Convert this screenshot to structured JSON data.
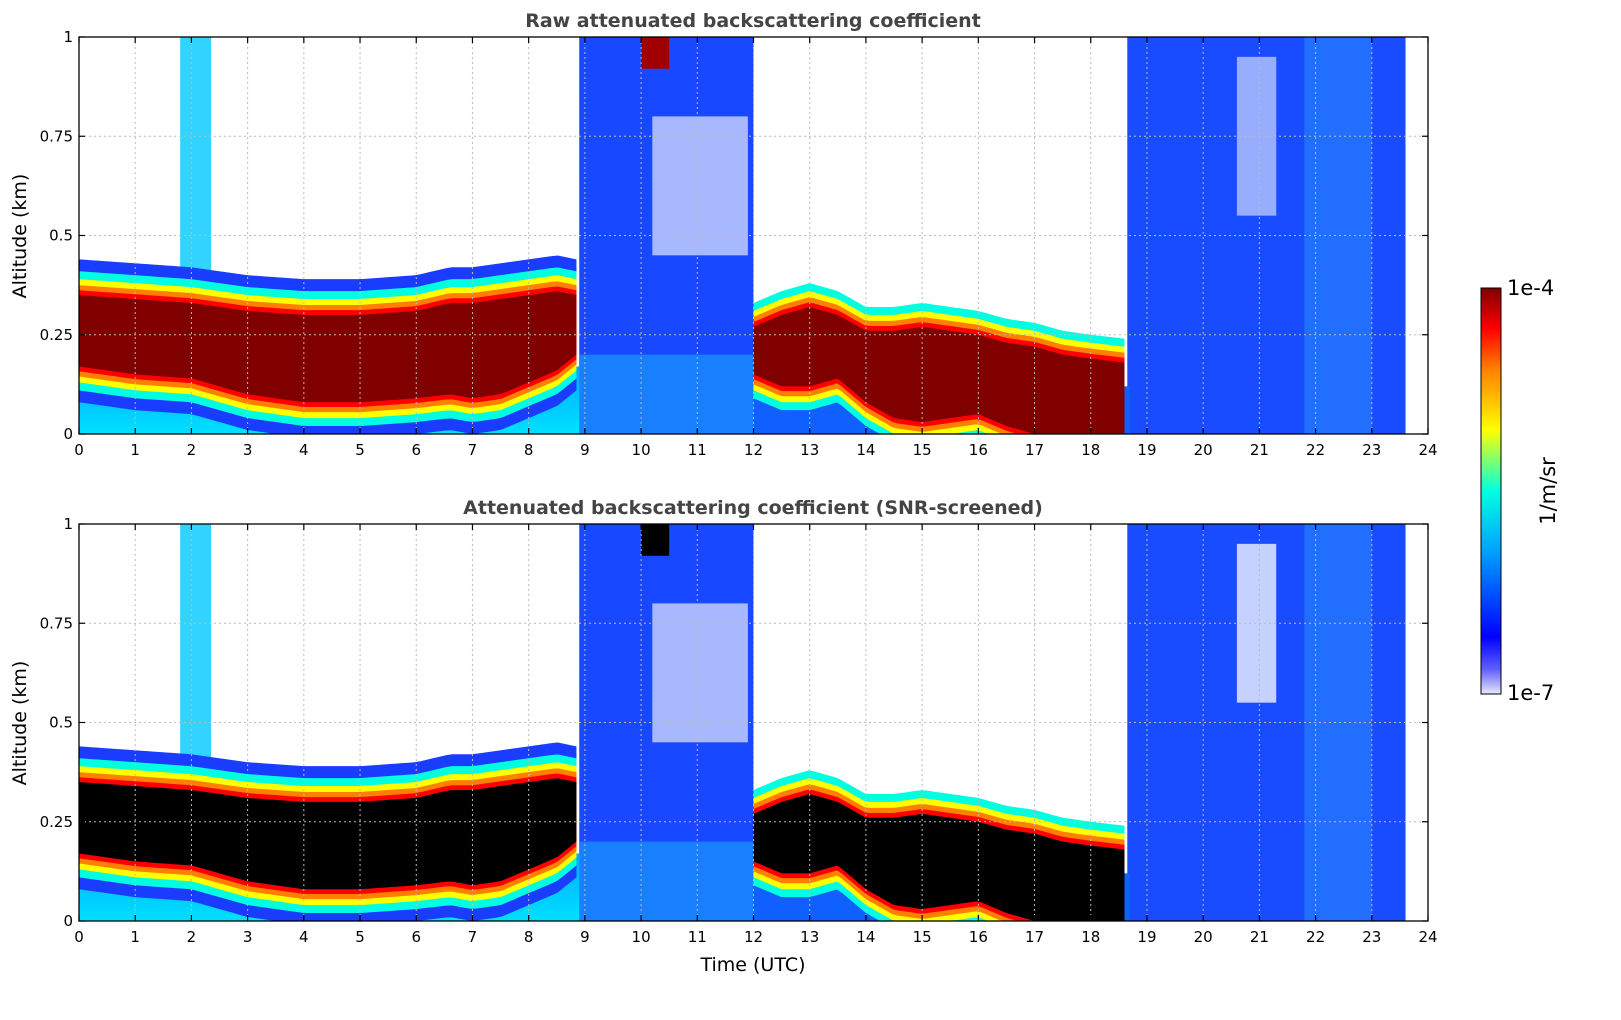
{
  "chart_data": [
    {
      "type": "heatmap",
      "id": "raw",
      "title": "Raw attenuated backscattering coefficient",
      "xlabel": "",
      "ylabel": "Altitude (km)",
      "xlim": [
        0,
        24
      ],
      "ylim": [
        0,
        1
      ],
      "x_ticks": [
        "0",
        "1",
        "2",
        "3",
        "4",
        "5",
        "6",
        "7",
        "8",
        "9",
        "10",
        "11",
        "12",
        "13",
        "14",
        "15",
        "16",
        "17",
        "18",
        "19",
        "20",
        "21",
        "22",
        "23",
        "24"
      ],
      "y_ticks": [
        "0",
        "0.25",
        "0.5",
        "0.75",
        "1"
      ],
      "grid": true,
      "data_end_time": 23.6,
      "layer": {
        "time": [
          0,
          1,
          2,
          3,
          4,
          5,
          6,
          6.6,
          7,
          7.5,
          8,
          8.5,
          8.85
        ],
        "base_km": [
          0.17,
          0.15,
          0.14,
          0.1,
          0.08,
          0.08,
          0.09,
          0.1,
          0.09,
          0.1,
          0.13,
          0.16,
          0.2
        ],
        "top_km": [
          0.35,
          0.34,
          0.33,
          0.31,
          0.3,
          0.3,
          0.31,
          0.33,
          0.33,
          0.34,
          0.35,
          0.36,
          0.35
        ]
      },
      "layer2": {
        "time": [
          12,
          12.5,
          13,
          13.5,
          14,
          14.5,
          15,
          15.5,
          16,
          16.5,
          17,
          17.5,
          18,
          18.6
        ],
        "base_km": [
          0.15,
          0.12,
          0.12,
          0.14,
          0.08,
          0.04,
          0.03,
          0.04,
          0.05,
          0.02,
          0.0,
          0.0,
          0.0,
          0.0
        ],
        "top_km": [
          0.27,
          0.3,
          0.32,
          0.3,
          0.26,
          0.26,
          0.27,
          0.26,
          0.25,
          0.23,
          0.22,
          0.2,
          0.19,
          0.18
        ]
      }
    },
    {
      "type": "heatmap",
      "id": "screened",
      "title": "Attenuated backscattering coefficient (SNR-screened)",
      "xlabel": "Time (UTC)",
      "ylabel": "Altitude (km)",
      "xlim": [
        0,
        24
      ],
      "ylim": [
        0,
        1
      ],
      "x_ticks": [
        "0",
        "1",
        "2",
        "3",
        "4",
        "5",
        "6",
        "7",
        "8",
        "9",
        "10",
        "11",
        "12",
        "13",
        "14",
        "15",
        "16",
        "17",
        "18",
        "19",
        "20",
        "21",
        "22",
        "23",
        "24"
      ],
      "y_ticks": [
        "0",
        "0.25",
        "0.5",
        "0.75",
        "1"
      ],
      "grid": true,
      "data_end_time": 23.6,
      "saturated_color": "#000000"
    }
  ],
  "colorbar": {
    "label": "1/m/sr",
    "max_label": "1e-4",
    "min_label": "1e-7",
    "scale": "log",
    "colors": [
      "#e8e8f8",
      "#0000ff",
      "#00a0ff",
      "#00ffe0",
      "#ffff00",
      "#ff8000",
      "#ff0000",
      "#800000"
    ]
  }
}
